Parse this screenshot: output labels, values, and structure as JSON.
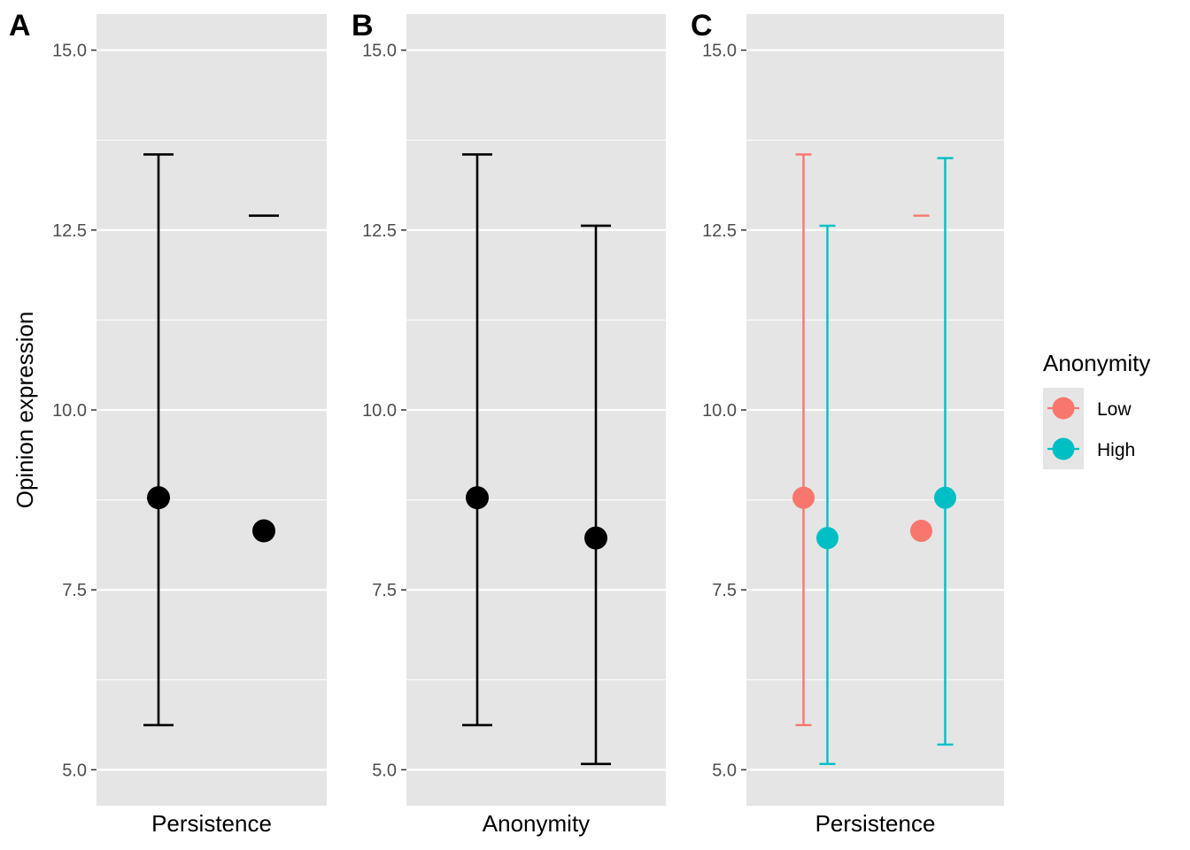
{
  "chart_data": [
    {
      "type": "scatter",
      "panel_label": "A",
      "xlabel": "Persistence",
      "ylabel": "Opinion expression",
      "ylim": [
        4.5,
        15.5
      ],
      "yticks": [
        "5.0",
        "7.5",
        "10.0",
        "12.5",
        "15.0"
      ],
      "grid": true,
      "x": [
        1,
        2
      ],
      "series": [
        {
          "color": "#000000",
          "points": [
            {
              "x": 1,
              "y": 8.78,
              "ymin": 5.62,
              "ymax": 13.55
            },
            {
              "x": 2,
              "y": 8.32,
              "ymin": 12.7,
              "ymax": 12.7
            }
          ]
        }
      ]
    },
    {
      "type": "scatter",
      "panel_label": "B",
      "xlabel": "Anonymity",
      "ylabel": "",
      "ylim": [
        4.5,
        15.5
      ],
      "yticks": [
        "5.0",
        "7.5",
        "10.0",
        "12.5",
        "15.0"
      ],
      "grid": true,
      "x": [
        1,
        2
      ],
      "series": [
        {
          "color": "#000000",
          "points": [
            {
              "x": 1,
              "y": 8.78,
              "ymin": 5.62,
              "ymax": 13.55
            },
            {
              "x": 2,
              "y": 8.22,
              "ymin": 5.08,
              "ymax": 12.56
            }
          ]
        }
      ]
    },
    {
      "type": "scatter",
      "panel_label": "C",
      "xlabel": "Persistence",
      "ylabel": "",
      "ylim": [
        4.5,
        15.5
      ],
      "yticks": [
        "5.0",
        "7.5",
        "10.0",
        "12.5",
        "15.0"
      ],
      "grid": true,
      "x": [
        1,
        2
      ],
      "legend": {
        "title": "Anonymity",
        "position": "right"
      },
      "series": [
        {
          "name": "Low",
          "color": "#F8766D",
          "points": [
            {
              "x": 1,
              "y": 8.78,
              "ymin": 5.62,
              "ymax": 13.55
            },
            {
              "x": 2,
              "y": 8.32,
              "ymin": 12.7,
              "ymax": 12.7
            }
          ]
        },
        {
          "name": "High",
          "color": "#00BFC4",
          "points": [
            {
              "x": 1,
              "y": 8.22,
              "ymin": 5.08,
              "ymax": 12.56
            },
            {
              "x": 2,
              "y": 8.78,
              "ymin": 5.35,
              "ymax": 13.5
            }
          ]
        }
      ]
    }
  ],
  "colors": {
    "panel_background": "#E5E5E5",
    "gridline": "#FFFFFF",
    "tick_text": "#4D4D4D"
  }
}
